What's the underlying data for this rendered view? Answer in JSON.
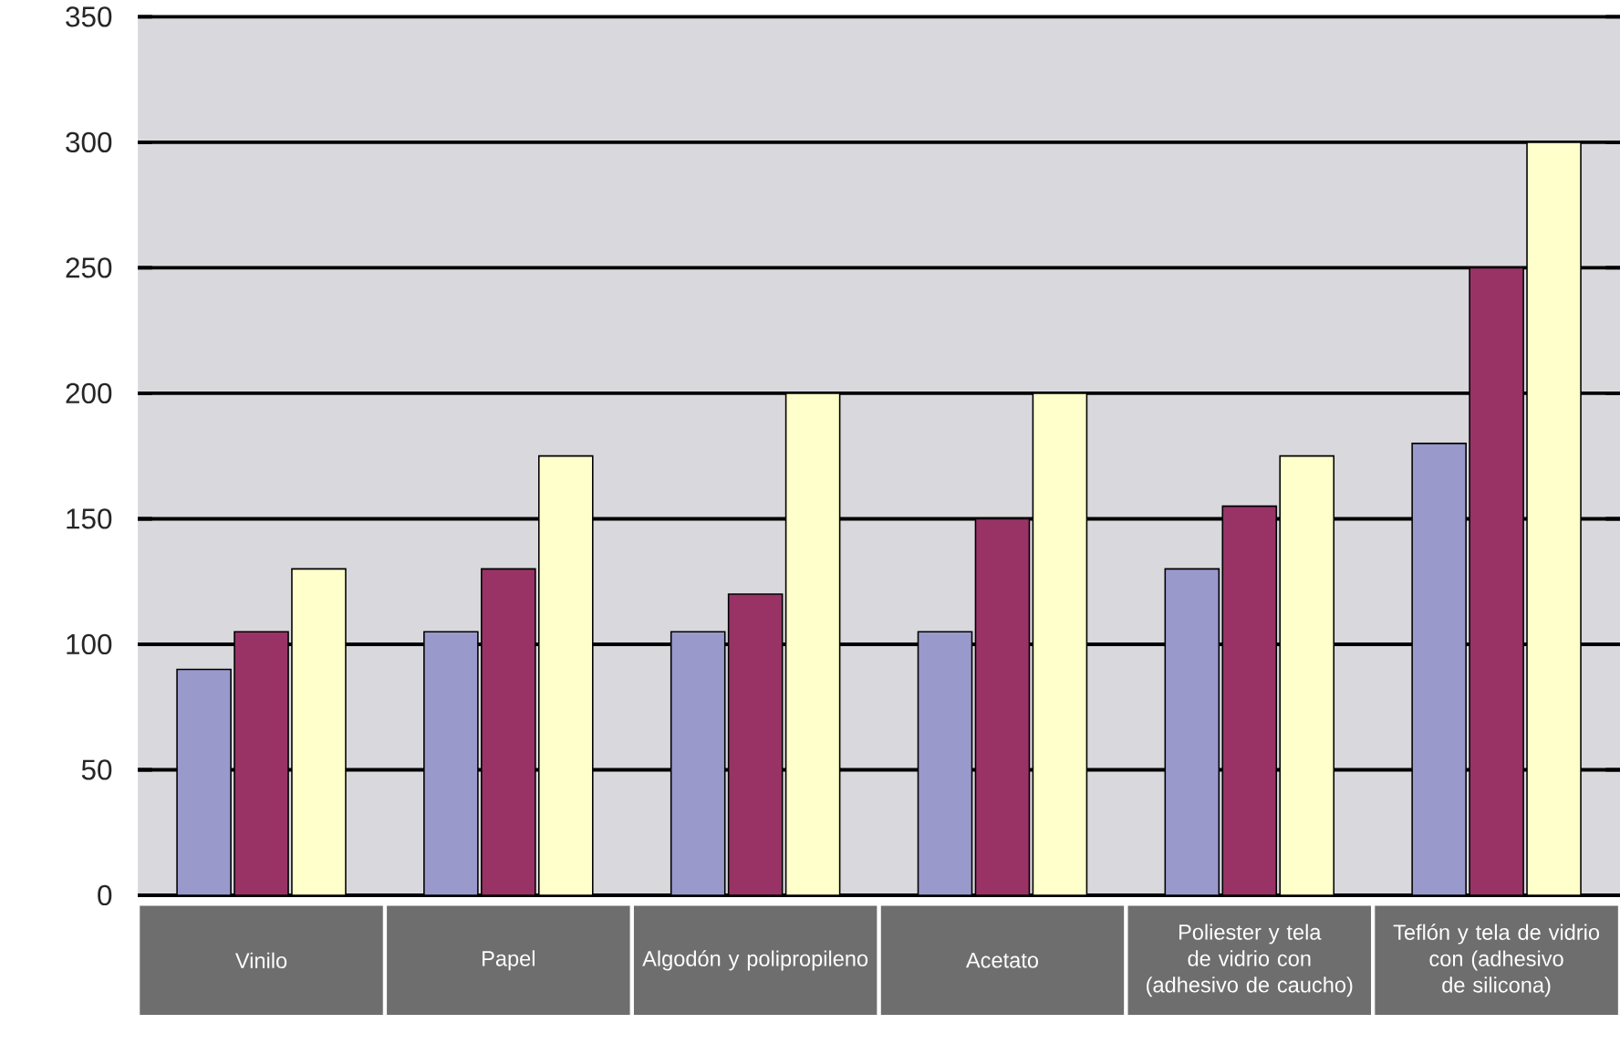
{
  "chart_data": {
    "type": "bar",
    "categories": [
      "Vinilo",
      "Papel",
      "Algodón y polipropileno",
      "Acetato",
      "Poliester y tela de vidrio con (adhesivo de caucho)",
      "Teflón y tela de vidrio con (adhesivo de silicona)"
    ],
    "series": [
      {
        "color": "#9999cc",
        "values": [
          90,
          105,
          105,
          105,
          130,
          180
        ]
      },
      {
        "color": "#993366",
        "values": [
          105,
          130,
          120,
          150,
          155,
          250
        ]
      },
      {
        "color": "#ffffcc",
        "values": [
          130,
          175,
          200,
          200,
          175,
          300
        ]
      }
    ],
    "ylim": [
      0,
      350
    ],
    "yticks": [
      0,
      50,
      100,
      150,
      200,
      250,
      300,
      350
    ],
    "grid": "y"
  }
}
